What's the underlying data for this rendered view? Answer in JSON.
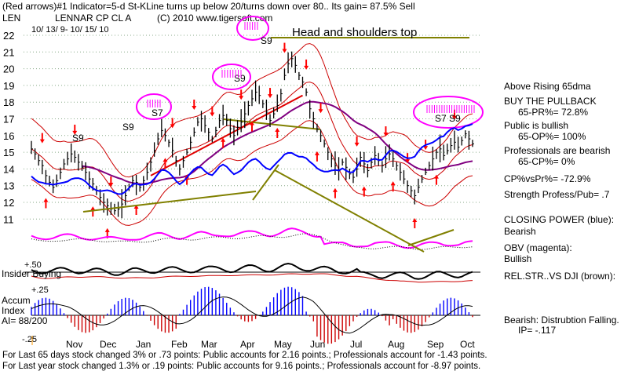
{
  "header": {
    "line1": "(Red arrows)#1 Indicator=5-d St-KLine turns up below 20/turns down over 80.. Its gain= 87.5% Sell",
    "ticker": "LEN",
    "company": "LENNAR CP CL A",
    "copyright": "(C) 2010 www.tigersoft.com",
    "date_range": "10/ 13/ 9- 10/ 15/ 10"
  },
  "annotation": "Head and shoulders top",
  "sell_labels": [
    "S9",
    "S9",
    "S7",
    "S9",
    "S9",
    "S7 S9"
  ],
  "indicator_labels": {
    "insider_buying": "Insider Buying",
    "accum": "Accum",
    "index": "Index",
    "ai": "AI= 88/200",
    "plus50": "+.50",
    "plus25": "+.25",
    "minus25": "-.25"
  },
  "right_panel": [
    {
      "text": "Above Rising 65dma"
    },
    {
      "text": "BUY THE PULLBACK"
    },
    {
      "text": "65-PR%= 72.8%"
    },
    {
      "text": "Public is bullish"
    },
    {
      "text": "65-OP%= 100%"
    },
    {
      "text": "Professionals are bearish"
    },
    {
      "text": "65-CP%= 0%"
    },
    {
      "text": "CP%vsPr%= -72.9%"
    },
    {
      "text": "Strength Profess/Pub= .7"
    },
    {
      "text": "CLOSING POWER (blue):"
    },
    {
      "text": "Bearish"
    },
    {
      "text": "OBV (magenta):"
    },
    {
      "text": "Bullish"
    },
    {
      "text": "REL.STR..VS DJI (brown):"
    },
    {
      "text": "Bearish: Distrubtion Falling."
    },
    {
      "text": "IP= -.117"
    }
  ],
  "footer": {
    "line1": "For Last 65 days stock changed  3% or  .73 points:  Public accounts for  2.16 points.;  Professionals account for -1.43 points.",
    "line2": "For Last year stock changed  1.3% or  .19 points:  Public accounts for  9.16 points.;  Professionals account for -8.97 points."
  },
  "colors": {
    "price_bars": "#000000",
    "closing_power": "#0000ff",
    "obv": "#ff00ff",
    "rel_strength": "#000000",
    "ma65": "#800080",
    "bands": "#cc0000",
    "trendline": "#808000",
    "arrows": "#ff0000",
    "accum_pos": "#0000ff",
    "accum_neg": "#cc0000",
    "circles": "#ff00ff"
  },
  "chart_data": {
    "type": "ohlc",
    "y_ticks": [
      22,
      21,
      20,
      19,
      18,
      17,
      16,
      15,
      14,
      13,
      12,
      11
    ],
    "ylim": [
      10.5,
      22.3
    ],
    "x_ticks": [
      "Nov",
      "Dec",
      "Jan",
      "Feb",
      "Mar",
      "Apr",
      "May",
      "Jun",
      "Jul",
      "Aug",
      "Sep",
      "Oct"
    ],
    "closes": [
      [
        0,
        15.2
      ],
      [
        1,
        14.9
      ],
      [
        2,
        14.5
      ],
      [
        3,
        14.2
      ],
      [
        4,
        13.6
      ],
      [
        5,
        13.2
      ],
      [
        6,
        12.9
      ],
      [
        7,
        13.3
      ],
      [
        8,
        13.8
      ],
      [
        9,
        14.3
      ],
      [
        10,
        14.6
      ],
      [
        11,
        14.9
      ],
      [
        12,
        14.7
      ],
      [
        13,
        14.4
      ],
      [
        14,
        14.1
      ],
      [
        15,
        13.8
      ],
      [
        16,
        13.4
      ],
      [
        17,
        13.1
      ],
      [
        18,
        12.7
      ],
      [
        19,
        12.3
      ],
      [
        20,
        12.0
      ],
      [
        21,
        11.8
      ],
      [
        22,
        11.6
      ],
      [
        23,
        11.5
      ],
      [
        24,
        11.6
      ],
      [
        25,
        11.9
      ],
      [
        26,
        12.4
      ],
      [
        27,
        12.9
      ],
      [
        28,
        13.3
      ],
      [
        29,
        13.2
      ],
      [
        30,
        12.9
      ],
      [
        31,
        13.3
      ],
      [
        32,
        13.8
      ],
      [
        33,
        14.4
      ],
      [
        34,
        15.1
      ],
      [
        35,
        15.8
      ],
      [
        36,
        16.3
      ],
      [
        37,
        16.0
      ],
      [
        38,
        15.6
      ],
      [
        39,
        15.1
      ],
      [
        40,
        14.5
      ],
      [
        41,
        14.0
      ],
      [
        42,
        14.5
      ],
      [
        43,
        15.0
      ],
      [
        44,
        15.6
      ],
      [
        45,
        16.2
      ],
      [
        46,
        16.8
      ],
      [
        47,
        17.0
      ],
      [
        48,
        16.6
      ],
      [
        49,
        16.2
      ],
      [
        50,
        15.8
      ],
      [
        51,
        16.3
      ],
      [
        52,
        16.9
      ],
      [
        53,
        17.2
      ],
      [
        54,
        16.9
      ],
      [
        55,
        16.4
      ],
      [
        56,
        16.0
      ],
      [
        57,
        16.5
      ],
      [
        58,
        16.8
      ],
      [
        59,
        17.3
      ],
      [
        60,
        17.8
      ],
      [
        61,
        18.2
      ],
      [
        62,
        18.6
      ],
      [
        63,
        18.4
      ],
      [
        64,
        17.9
      ],
      [
        65,
        17.4
      ],
      [
        66,
        16.9
      ],
      [
        67,
        17.3
      ],
      [
        68,
        17.8
      ],
      [
        69,
        18.5
      ],
      [
        70,
        19.6
      ],
      [
        71,
        20.3
      ],
      [
        72,
        20.6
      ],
      [
        73,
        20.2
      ],
      [
        74,
        19.6
      ],
      [
        75,
        19.2
      ],
      [
        76,
        18.6
      ],
      [
        77,
        17.6
      ],
      [
        78,
        17.0
      ],
      [
        79,
        16.4
      ],
      [
        80,
        16.0
      ],
      [
        81,
        15.5
      ],
      [
        82,
        15.0
      ],
      [
        83,
        14.6
      ],
      [
        84,
        14.2
      ],
      [
        85,
        13.9
      ],
      [
        86,
        14.4
      ],
      [
        87,
        14.1
      ],
      [
        88,
        13.7
      ],
      [
        89,
        13.5
      ],
      [
        90,
        14.0
      ],
      [
        91,
        14.7
      ],
      [
        92,
        14.3
      ],
      [
        93,
        13.9
      ],
      [
        94,
        14.4
      ],
      [
        95,
        14.8
      ],
      [
        96,
        14.5
      ],
      [
        97,
        14.2
      ],
      [
        98,
        14.6
      ],
      [
        99,
        14.9
      ],
      [
        100,
        14.6
      ],
      [
        101,
        14.2
      ],
      [
        102,
        13.8
      ],
      [
        103,
        13.4
      ],
      [
        104,
        13.0
      ],
      [
        105,
        12.7
      ],
      [
        106,
        12.4
      ],
      [
        107,
        12.9
      ],
      [
        108,
        13.4
      ],
      [
        109,
        13.8
      ],
      [
        110,
        14.2
      ],
      [
        111,
        14.6
      ],
      [
        112,
        15.0
      ],
      [
        113,
        15.2
      ],
      [
        114,
        14.8
      ],
      [
        115,
        15.1
      ],
      [
        116,
        15.4
      ],
      [
        117,
        15.6
      ],
      [
        118,
        15.3
      ],
      [
        119,
        15.7
      ],
      [
        120,
        16.1
      ],
      [
        121,
        15.8
      ],
      [
        122,
        15.5
      ]
    ]
  }
}
